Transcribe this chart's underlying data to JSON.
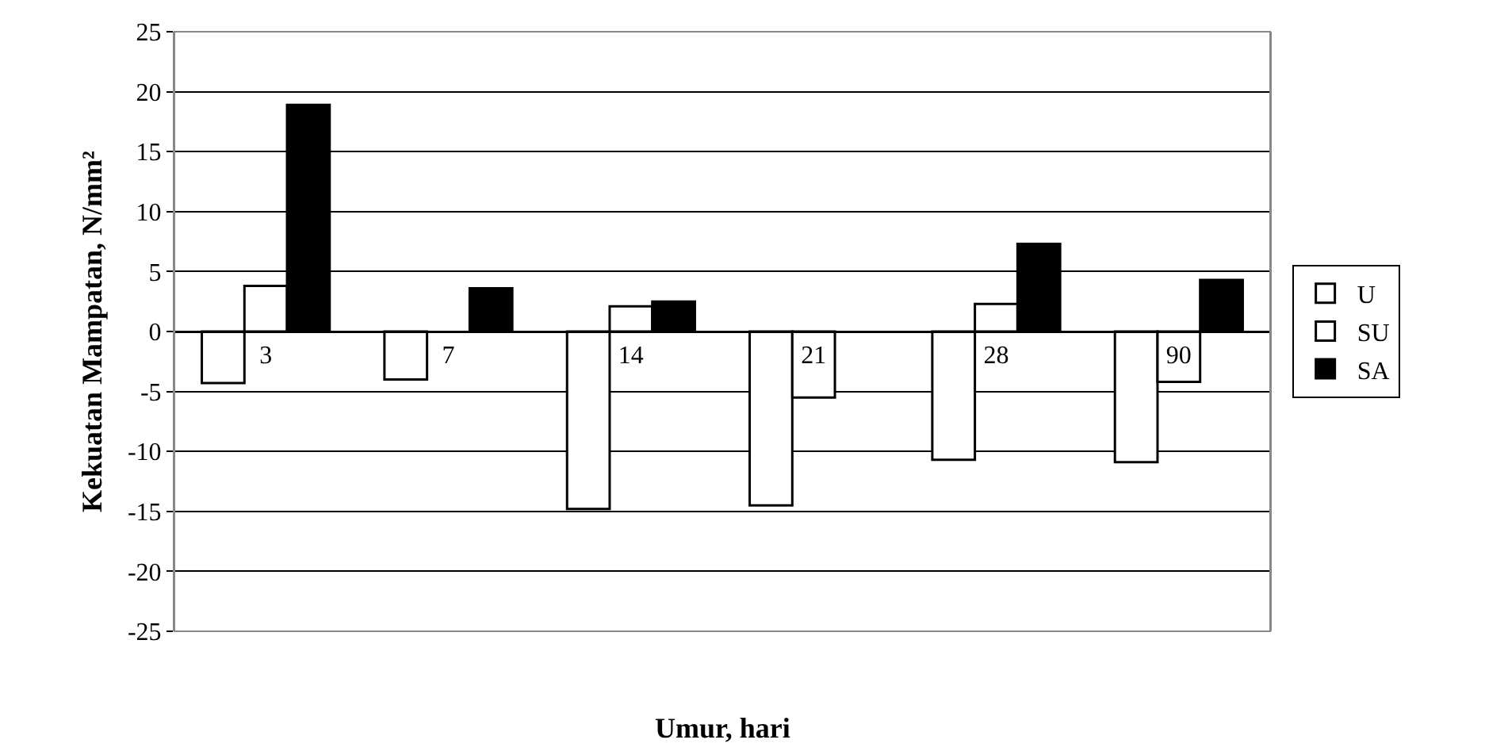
{
  "chart_data": {
    "type": "bar",
    "xlabel": "Umur, hari",
    "ylabel": "Kekuatan Mampatan, N/mm²",
    "categories": [
      "3",
      "7",
      "14",
      "21",
      "28",
      "90"
    ],
    "series": [
      {
        "name": "U",
        "color": "#ffffff",
        "values": [
          -4.3,
          -4.0,
          -14.8,
          -14.5,
          -10.7,
          -10.9
        ]
      },
      {
        "name": "SU",
        "color": "#ffffff",
        "values": [
          3.8,
          null,
          2.1,
          -5.5,
          2.3,
          -4.2
        ]
      },
      {
        "name": "SA",
        "color": "#000000",
        "values": [
          18.9,
          3.6,
          2.5,
          null,
          7.3,
          4.3
        ]
      }
    ],
    "ylim": [
      -25,
      25
    ],
    "yticks": [
      -25,
      -20,
      -15,
      -10,
      -5,
      0,
      5,
      10,
      15,
      20,
      25
    ],
    "grid": "y",
    "legend": "right"
  }
}
